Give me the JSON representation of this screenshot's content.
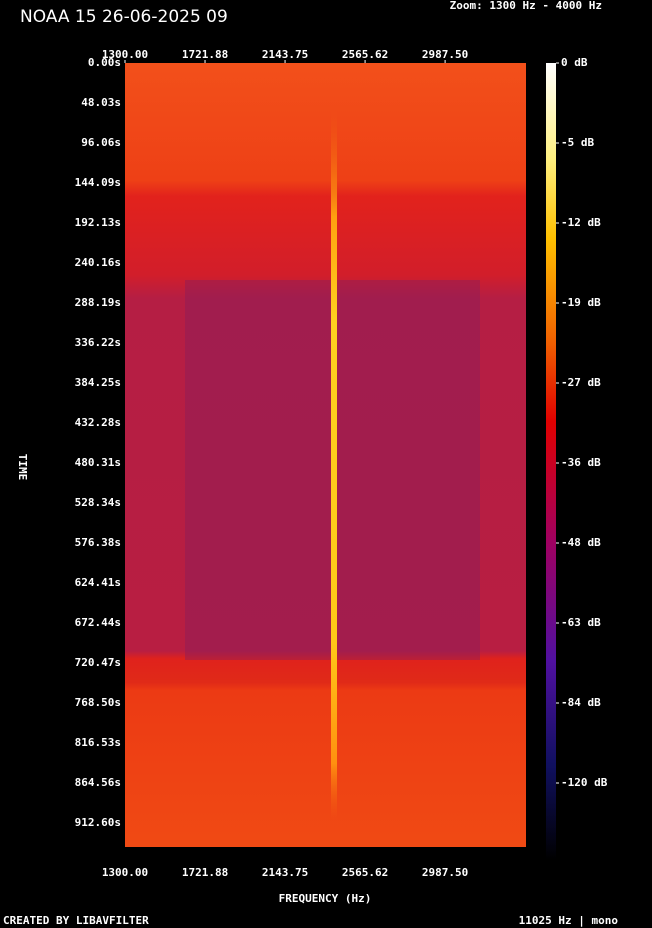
{
  "chart_data": {
    "type": "spectrogram",
    "title": "NOAA 15 26-06-2025 09",
    "subtitle": "Zoom: 1300 Hz - 4000 Hz",
    "x_label": "FREQUENCY (Hz)",
    "y_label": "TIME",
    "footer_left": "CREATED BY LIBAVFILTER",
    "footer_right": "11025 Hz | mono",
    "xlim": [
      1300,
      3414
    ],
    "xticks": [
      {
        "value": 1300,
        "label": "1300.00"
      },
      {
        "value": 1721.88,
        "label": "1721.88"
      },
      {
        "value": 2143.75,
        "label": "2143.75"
      },
      {
        "value": 2565.62,
        "label": "2565.62"
      },
      {
        "value": 2987.5,
        "label": "2987.50"
      }
    ],
    "ylim": [
      0,
      941.4
    ],
    "yticks": [
      {
        "value": 0,
        "label": "0.00s"
      },
      {
        "value": 48.03,
        "label": "48.03s"
      },
      {
        "value": 96.06,
        "label": "96.06s"
      },
      {
        "value": 144.09,
        "label": "144.09s"
      },
      {
        "value": 192.13,
        "label": "192.13s"
      },
      {
        "value": 240.16,
        "label": "240.16s"
      },
      {
        "value": 288.19,
        "label": "288.19s"
      },
      {
        "value": 336.22,
        "label": "336.22s"
      },
      {
        "value": 384.25,
        "label": "384.25s"
      },
      {
        "value": 432.28,
        "label": "432.28s"
      },
      {
        "value": 480.31,
        "label": "480.31s"
      },
      {
        "value": 528.34,
        "label": "528.34s"
      },
      {
        "value": 576.38,
        "label": "576.38s"
      },
      {
        "value": 624.41,
        "label": "624.41s"
      },
      {
        "value": 672.44,
        "label": "672.44s"
      },
      {
        "value": 720.47,
        "label": "720.47s"
      },
      {
        "value": 768.5,
        "label": "768.50s"
      },
      {
        "value": 816.53,
        "label": "816.53s"
      },
      {
        "value": 864.56,
        "label": "864.56s"
      },
      {
        "value": 912.6,
        "label": "912.60s"
      }
    ],
    "colorbar_ticks": [
      {
        "value": 0,
        "label": "0 dB"
      },
      {
        "value": -5,
        "label": "-5 dB"
      },
      {
        "value": -12,
        "label": "-12 dB"
      },
      {
        "value": -19,
        "label": "-19 dB"
      },
      {
        "value": -27,
        "label": "-27 dB"
      },
      {
        "value": -36,
        "label": "-36 dB"
      },
      {
        "value": -48,
        "label": "-48 dB"
      },
      {
        "value": -63,
        "label": "-63 dB"
      },
      {
        "value": -84,
        "label": "-84 dB"
      },
      {
        "value": -120,
        "label": "-120 dB"
      }
    ]
  }
}
